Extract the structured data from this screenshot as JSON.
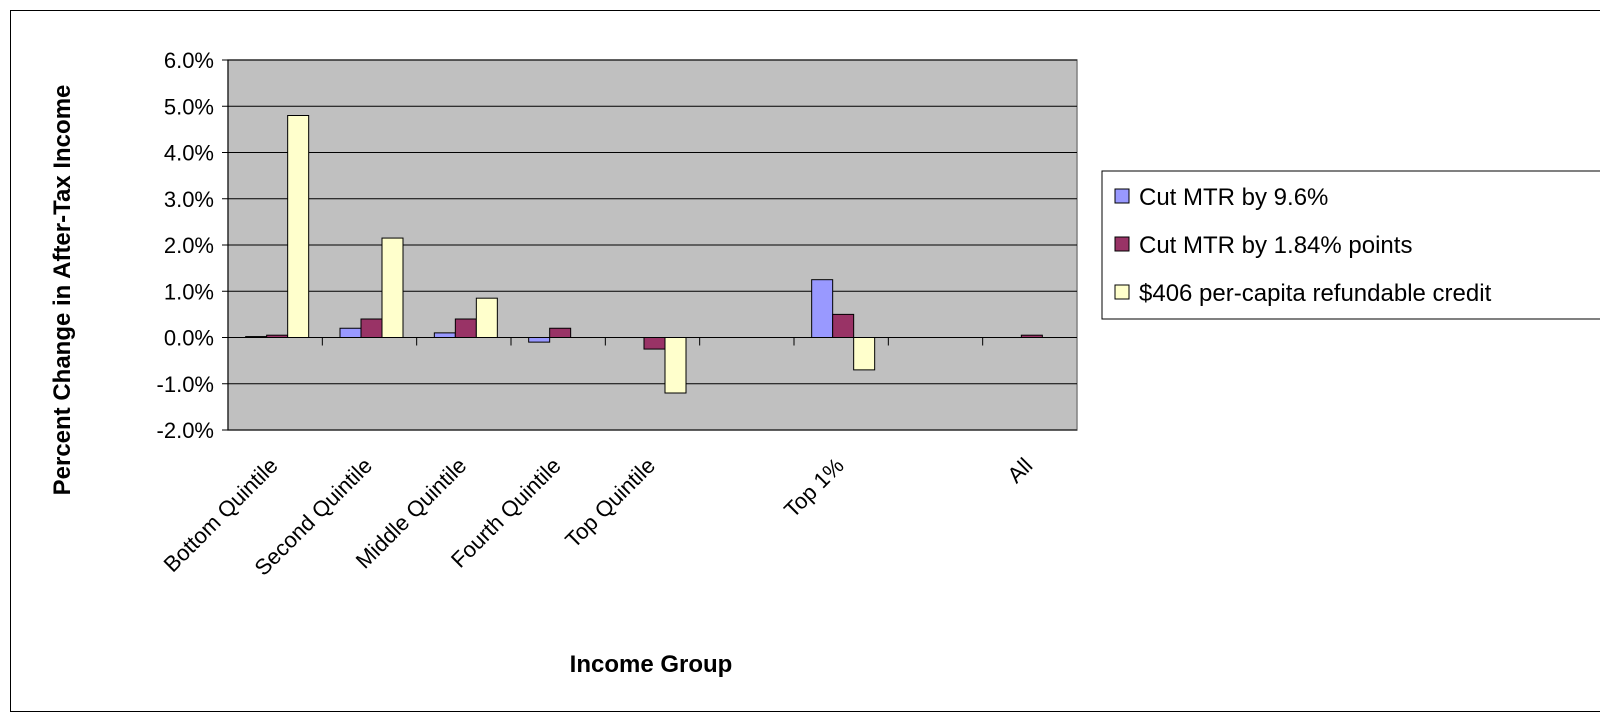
{
  "chart_data": {
    "type": "bar",
    "title": "",
    "xlabel": "Income Group",
    "ylabel": "Percent Change in After-Tax Income",
    "categories": [
      "Bottom Quintile",
      "Second Quintile",
      "Middle Quintile",
      "Fourth Quintile",
      "Top Quintile",
      "",
      "Top 1%",
      "",
      "All"
    ],
    "series": [
      {
        "name": "Cut MTR by 9.6%",
        "color": "#9999ff",
        "values": [
          0.02,
          0.2,
          0.1,
          -0.1,
          0.0,
          null,
          1.25,
          null,
          0.0
        ]
      },
      {
        "name": "Cut MTR by 1.84% points",
        "color": "#993366",
        "values": [
          0.05,
          0.4,
          0.4,
          0.2,
          -0.25,
          null,
          0.5,
          null,
          0.05
        ]
      },
      {
        "name": "$406 per-capita refundable credit",
        "color": "#ffffcc",
        "values": [
          4.8,
          2.15,
          0.85,
          0.0,
          -1.2,
          null,
          -0.7,
          null,
          0.0
        ]
      }
    ],
    "ylim": [
      -2.0,
      6.0
    ],
    "yticks": [
      "6.0%",
      "5.0%",
      "4.0%",
      "3.0%",
      "2.0%",
      "1.0%",
      "0.0%",
      "-1.0%",
      "-2.0%"
    ],
    "grid": true,
    "plot_background": "#c0c0c0",
    "legend_position": "right"
  }
}
